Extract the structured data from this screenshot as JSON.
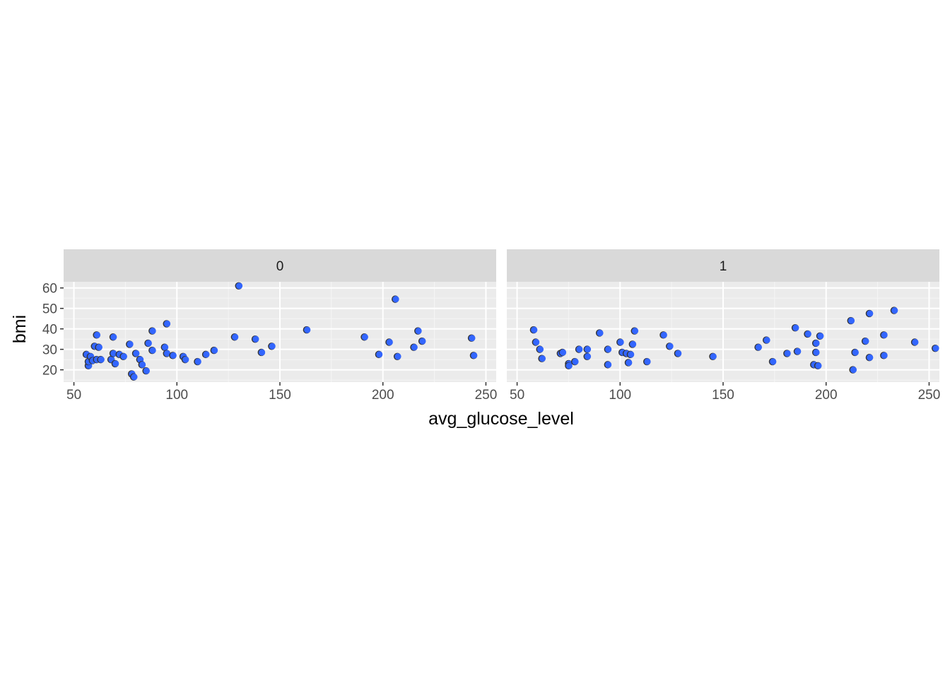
{
  "chart_data": {
    "type": "scatter",
    "facet_variable": "",
    "xlabel": "avg_glucose_level",
    "ylabel": "bmi",
    "xlim": [
      45,
      255
    ],
    "ylim": [
      14,
      63
    ],
    "x_ticks": [
      50,
      100,
      150,
      200,
      250
    ],
    "y_ticks": [
      20,
      30,
      40,
      50,
      60
    ],
    "grid": true,
    "legend": "none",
    "colors": {
      "point_fill": "#3366ff",
      "point_outline": "#333333",
      "panel_bg": "#ebebeb",
      "strip_bg": "#d9d9d9",
      "grid_major": "#ffffff",
      "grid_minor": "#f5f5f5"
    },
    "panels": [
      {
        "label": "0",
        "points": [
          {
            "x": 56,
            "y": 27.5
          },
          {
            "x": 57,
            "y": 22
          },
          {
            "x": 57,
            "y": 24
          },
          {
            "x": 58,
            "y": 26.5
          },
          {
            "x": 59,
            "y": 24.5
          },
          {
            "x": 60,
            "y": 31.5
          },
          {
            "x": 61,
            "y": 25
          },
          {
            "x": 61,
            "y": 37
          },
          {
            "x": 62,
            "y": 31
          },
          {
            "x": 63,
            "y": 25
          },
          {
            "x": 68,
            "y": 25
          },
          {
            "x": 69,
            "y": 36
          },
          {
            "x": 69,
            "y": 28
          },
          {
            "x": 70,
            "y": 23
          },
          {
            "x": 72,
            "y": 27.5
          },
          {
            "x": 74,
            "y": 26.5
          },
          {
            "x": 77,
            "y": 32.5
          },
          {
            "x": 78,
            "y": 18
          },
          {
            "x": 79,
            "y": 16.5
          },
          {
            "x": 80,
            "y": 28
          },
          {
            "x": 82,
            "y": 25
          },
          {
            "x": 83,
            "y": 22.5
          },
          {
            "x": 85,
            "y": 19.5
          },
          {
            "x": 86,
            "y": 33
          },
          {
            "x": 88,
            "y": 39
          },
          {
            "x": 88,
            "y": 29.5
          },
          {
            "x": 94,
            "y": 31
          },
          {
            "x": 95,
            "y": 42.5
          },
          {
            "x": 95,
            "y": 28
          },
          {
            "x": 98,
            "y": 27
          },
          {
            "x": 103,
            "y": 26.5
          },
          {
            "x": 104,
            "y": 25
          },
          {
            "x": 110,
            "y": 24
          },
          {
            "x": 114,
            "y": 27.5
          },
          {
            "x": 118,
            "y": 29.5
          },
          {
            "x": 128,
            "y": 36
          },
          {
            "x": 130,
            "y": 61
          },
          {
            "x": 138,
            "y": 35
          },
          {
            "x": 141,
            "y": 28.5
          },
          {
            "x": 146,
            "y": 31.5
          },
          {
            "x": 163,
            "y": 39.5
          },
          {
            "x": 191,
            "y": 36
          },
          {
            "x": 198,
            "y": 27.5
          },
          {
            "x": 203,
            "y": 33.5
          },
          {
            "x": 206,
            "y": 54.5
          },
          {
            "x": 207,
            "y": 26.5
          },
          {
            "x": 215,
            "y": 31
          },
          {
            "x": 217,
            "y": 39
          },
          {
            "x": 219,
            "y": 34
          },
          {
            "x": 243,
            "y": 35.5
          },
          {
            "x": 244,
            "y": 27
          }
        ]
      },
      {
        "label": "1",
        "points": [
          {
            "x": 58,
            "y": 39.5
          },
          {
            "x": 59,
            "y": 33.5
          },
          {
            "x": 61,
            "y": 30
          },
          {
            "x": 62,
            "y": 25.5
          },
          {
            "x": 71,
            "y": 28
          },
          {
            "x": 72,
            "y": 28.5
          },
          {
            "x": 75,
            "y": 23
          },
          {
            "x": 75,
            "y": 22
          },
          {
            "x": 78,
            "y": 24
          },
          {
            "x": 80,
            "y": 30
          },
          {
            "x": 84,
            "y": 30
          },
          {
            "x": 84,
            "y": 26.5
          },
          {
            "x": 90,
            "y": 38
          },
          {
            "x": 94,
            "y": 30
          },
          {
            "x": 94,
            "y": 22.5
          },
          {
            "x": 100,
            "y": 33.5
          },
          {
            "x": 101,
            "y": 28.5
          },
          {
            "x": 103,
            "y": 28
          },
          {
            "x": 104,
            "y": 23.5
          },
          {
            "x": 105,
            "y": 27.5
          },
          {
            "x": 106,
            "y": 32.5
          },
          {
            "x": 107,
            "y": 39
          },
          {
            "x": 113,
            "y": 24
          },
          {
            "x": 121,
            "y": 37
          },
          {
            "x": 124,
            "y": 31.5
          },
          {
            "x": 128,
            "y": 28
          },
          {
            "x": 145,
            "y": 26.5
          },
          {
            "x": 167,
            "y": 31
          },
          {
            "x": 171,
            "y": 34.5
          },
          {
            "x": 174,
            "y": 24
          },
          {
            "x": 181,
            "y": 28
          },
          {
            "x": 185,
            "y": 40.5
          },
          {
            "x": 186,
            "y": 29
          },
          {
            "x": 191,
            "y": 37.5
          },
          {
            "x": 194,
            "y": 22.5
          },
          {
            "x": 195,
            "y": 33
          },
          {
            "x": 195,
            "y": 28.5
          },
          {
            "x": 196,
            "y": 22
          },
          {
            "x": 197,
            "y": 36.5
          },
          {
            "x": 212,
            "y": 44
          },
          {
            "x": 213,
            "y": 20
          },
          {
            "x": 214,
            "y": 28.5
          },
          {
            "x": 219,
            "y": 34
          },
          {
            "x": 221,
            "y": 47.5
          },
          {
            "x": 221,
            "y": 26
          },
          {
            "x": 228,
            "y": 37
          },
          {
            "x": 228,
            "y": 27
          },
          {
            "x": 233,
            "y": 49
          },
          {
            "x": 243,
            "y": 33.5
          },
          {
            "x": 253,
            "y": 30.5
          }
        ]
      }
    ]
  }
}
